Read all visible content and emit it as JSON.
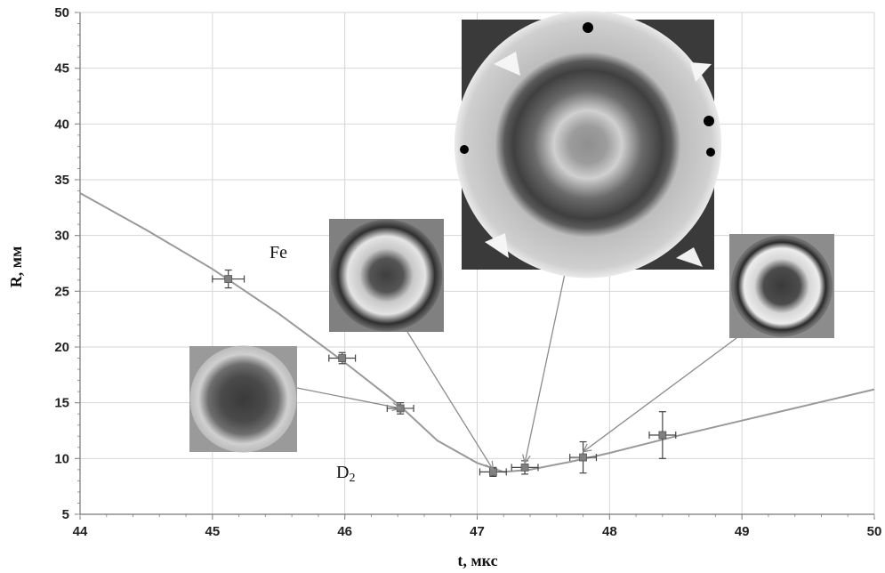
{
  "chart_data": {
    "type": "scatter",
    "xlabel": "t, мкс",
    "ylabel": "R, мм",
    "xlim": [
      44,
      50
    ],
    "ylim": [
      5,
      50
    ],
    "xticks": [
      "44",
      "45",
      "46",
      "47",
      "48",
      "49",
      "50"
    ],
    "yticks": [
      "5",
      "10",
      "15",
      "20",
      "25",
      "30",
      "35",
      "40",
      "45",
      "50"
    ],
    "grid": true,
    "annotations": [
      "Fe",
      "D2"
    ],
    "series": [
      {
        "type": "scatter",
        "marker": "square",
        "color": "#808080",
        "points": [
          {
            "x": 45.12,
            "y": 26.1,
            "xerr": 0.12,
            "yerr": 0.8
          },
          {
            "x": 45.98,
            "y": 19.0,
            "xerr": 0.1,
            "yerr": 0.5
          },
          {
            "x": 46.42,
            "y": 14.5,
            "xerr": 0.1,
            "yerr": 0.5
          },
          {
            "x": 47.12,
            "y": 8.8,
            "xerr": 0.1,
            "yerr": 0.4
          },
          {
            "x": 47.36,
            "y": 9.2,
            "xerr": 0.1,
            "yerr": 0.6
          },
          {
            "x": 47.8,
            "y": 10.1,
            "xerr": 0.1,
            "yerr": 1.4
          },
          {
            "x": 48.4,
            "y": 12.1,
            "xerr": 0.1,
            "yerr": 2.1
          }
        ]
      },
      {
        "type": "line",
        "color": "#999999",
        "x": [
          44.0,
          44.5,
          45.0,
          45.5,
          46.0,
          46.4,
          46.7,
          47.0,
          47.2,
          47.4,
          47.7,
          48.0,
          48.5,
          49.0,
          49.5,
          50.0
        ],
        "y": [
          33.8,
          30.5,
          27.0,
          23.0,
          18.6,
          14.9,
          11.6,
          9.6,
          8.8,
          9.0,
          9.7,
          10.5,
          12.0,
          13.4,
          14.8,
          16.2
        ]
      }
    ],
    "insets": [
      {
        "name": "inset-small-dark-core",
        "color": "#8c8c8c",
        "points_to": {
          "x": 46.42,
          "y": 14.5
        }
      },
      {
        "name": "inset-ring-medium",
        "color": "#8c8c8c",
        "points_to": {
          "x": 47.12,
          "y": 9.0
        }
      },
      {
        "name": "inset-large-rings",
        "color": "#8c8c8c",
        "points_to": {
          "x": 47.36,
          "y": 9.6
        }
      },
      {
        "name": "inset-ring-textured",
        "color": "#8c8c8c",
        "points_to": {
          "x": 47.8,
          "y": 10.6
        }
      }
    ]
  }
}
